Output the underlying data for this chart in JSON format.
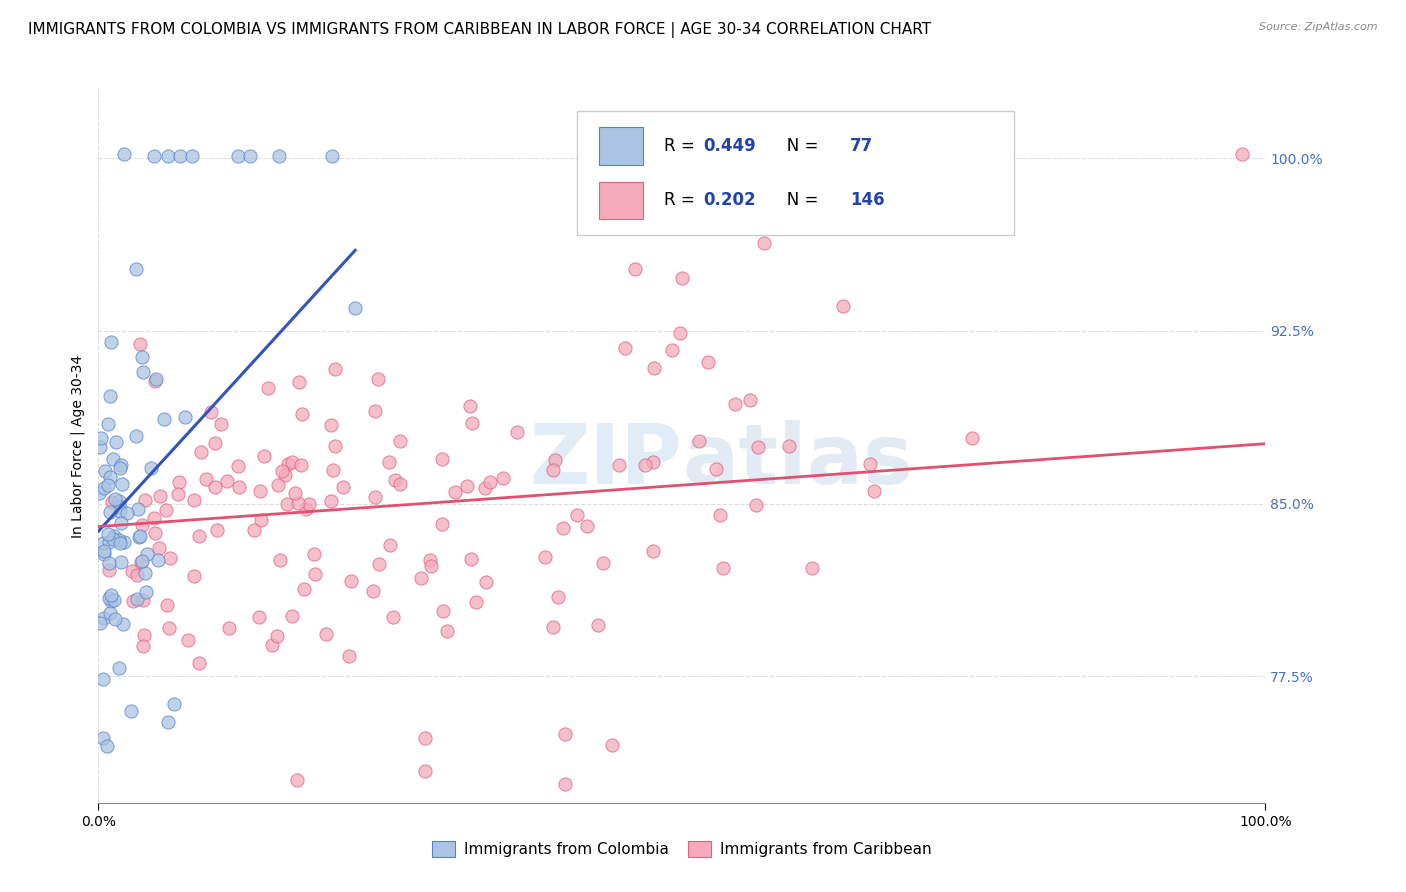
{
  "title": "IMMIGRANTS FROM COLOMBIA VS IMMIGRANTS FROM CARIBBEAN IN LABOR FORCE | AGE 30-34 CORRELATION CHART",
  "source": "Source: ZipAtlas.com",
  "ylabel": "In Labor Force | Age 30-34",
  "xlim": [
    0.0,
    1.0
  ],
  "ylim": [
    0.72,
    1.03
  ],
  "yticks": [
    0.775,
    0.85,
    0.925,
    1.0
  ],
  "ytick_labels": [
    "77.5%",
    "85.0%",
    "92.5%",
    "100.0%"
  ],
  "colombia_color": "#aac4e2",
  "caribbean_color": "#f4aabb",
  "colombia_edge_color": "#5580cc",
  "caribbean_edge_color": "#e06080",
  "colombia_line_color": "#3355bb",
  "caribbean_line_color": "#e05070",
  "colombia_R": 0.449,
  "colombia_N": 77,
  "caribbean_R": 0.202,
  "caribbean_N": 146,
  "watermark_color": "#c8ddf0",
  "background_color": "#ffffff",
  "grid_color": "#dddddd",
  "title_fontsize": 11,
  "axis_label_fontsize": 10,
  "tick_fontsize": 10,
  "right_tick_color": "#4472c4",
  "legend_text_color": "#2244aa",
  "col_trend_x": [
    0.0,
    0.22
  ],
  "col_trend_y": [
    0.838,
    0.96
  ],
  "car_trend_x": [
    0.0,
    1.0
  ],
  "car_trend_y": [
    0.84,
    0.876
  ]
}
